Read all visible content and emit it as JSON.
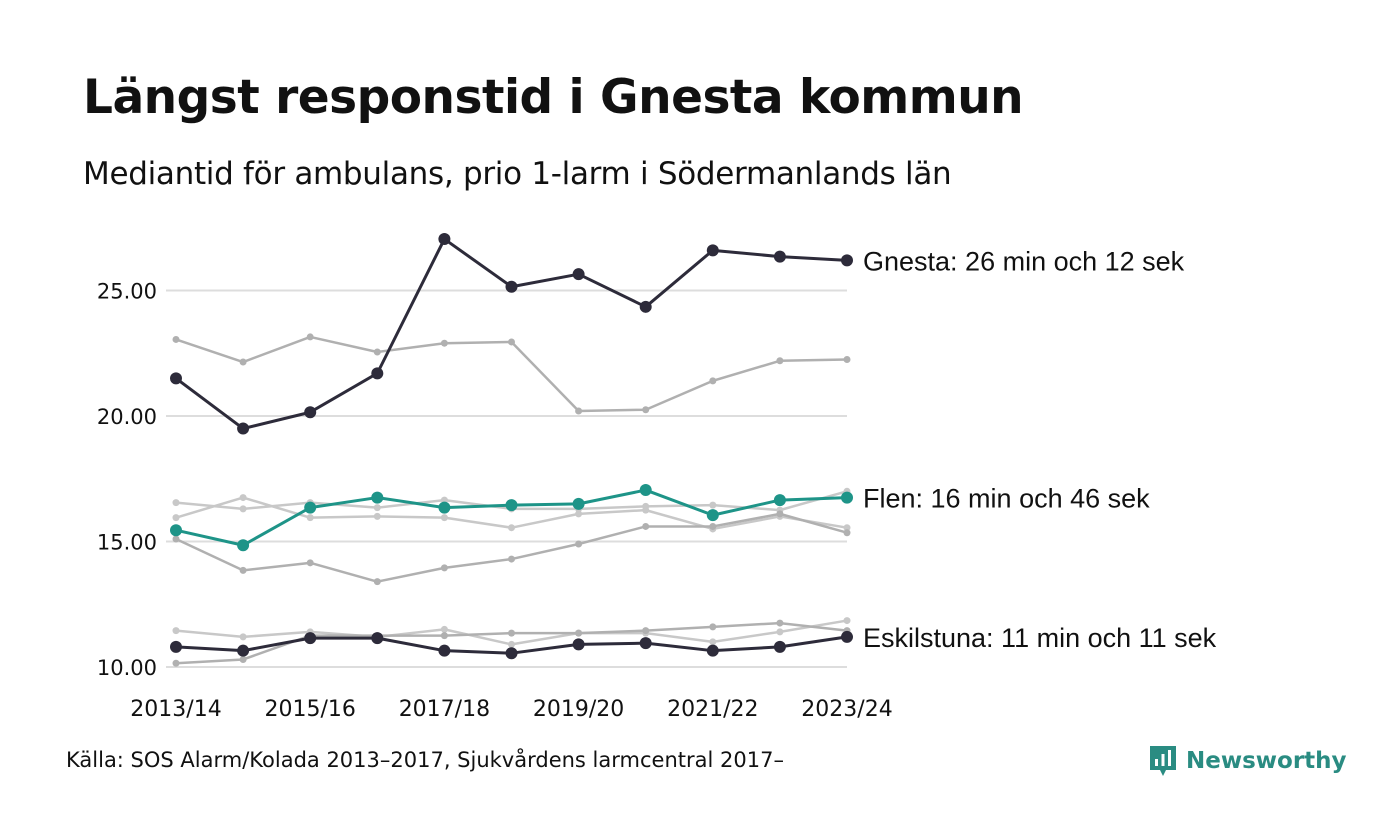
{
  "title": "Längst responstid i Gnesta kommun",
  "subtitle": "Mediantid för ambulans, prio 1-larm i Södermanlands län",
  "source": "Källa: SOS Alarm/Kolada 2013–2017, Sjukvårdens larmcentral 2017–",
  "logo": {
    "name": "Newsworthy",
    "icon": "bar-chart-icon",
    "color": "#2a8c82"
  },
  "colors": {
    "highlight_dark": "#2d2b3a",
    "highlight_teal": "#1e9488",
    "background_line": "#b0b0b0",
    "grid": "#dddddd"
  },
  "chart_data": {
    "type": "line",
    "title": "Längst responstid i Gnesta kommun",
    "subtitle": "Mediantid för ambulans, prio 1-larm i Södermanlands län",
    "xlabel": "",
    "ylabel": "",
    "ylim": [
      9.9,
      27.5
    ],
    "grid": true,
    "legend": "none",
    "x": [
      "2013/14",
      "2014/15",
      "2015/16",
      "2016/17",
      "2017/18",
      "2018/19",
      "2019/20",
      "2020/21",
      "2021/22",
      "2022/23",
      "2023/24"
    ],
    "x_tick_labels": [
      "2013/14",
      "2015/16",
      "2017/18",
      "2019/20",
      "2021/22",
      "2023/24"
    ],
    "y_ticks": [
      10,
      15,
      20,
      25
    ],
    "y_tick_labels": [
      "10.00",
      "15.00",
      "20.00",
      "25.00"
    ],
    "series": [
      {
        "values": [
          23.05,
          22.15,
          23.15,
          22.55,
          22.9,
          22.95,
          20.2,
          20.25,
          21.4,
          22.2,
          22.25
        ],
        "color": "#b0b0b0",
        "highlight": false
      },
      {
        "values": [
          16.55,
          16.3,
          16.55,
          16.35,
          16.65,
          16.3,
          16.3,
          16.4,
          16.45,
          16.25,
          17.0
        ],
        "color": "#c8c8c8",
        "highlight": false
      },
      {
        "values": [
          15.95,
          16.75,
          15.95,
          16.0,
          15.95,
          15.55,
          16.1,
          16.25,
          15.5,
          16.0,
          15.55
        ],
        "color": "#c8c8c8",
        "highlight": false
      },
      {
        "values": [
          15.1,
          13.85,
          14.15,
          13.4,
          13.95,
          14.3,
          14.9,
          15.6,
          15.6,
          16.1,
          15.35
        ],
        "color": "#b0b0b0",
        "highlight": false
      },
      {
        "values": [
          11.45,
          11.2,
          11.4,
          11.2,
          11.5,
          10.9,
          11.35,
          11.35,
          11.0,
          11.4,
          11.85
        ],
        "color": "#c8c8c8",
        "highlight": false
      },
      {
        "values": [
          10.15,
          10.3,
          11.25,
          11.25,
          11.25,
          11.35,
          11.35,
          11.45,
          11.6,
          11.75,
          11.45
        ],
        "color": "#b0b0b0",
        "highlight": false
      },
      {
        "name": "Gnesta",
        "label": "Gnesta: 26 min och 12 sek",
        "values": [
          21.5,
          19.5,
          20.15,
          21.7,
          27.05,
          25.15,
          25.65,
          24.35,
          26.6,
          26.35,
          26.2
        ],
        "color": "#2d2b3a",
        "highlight": true
      },
      {
        "name": "Flen",
        "label": "Flen: 16 min och 46 sek",
        "values": [
          15.45,
          14.85,
          16.35,
          16.75,
          16.35,
          16.45,
          16.5,
          17.05,
          16.05,
          16.65,
          16.75
        ],
        "color": "#1e9488",
        "highlight": true
      },
      {
        "name": "Eskilstuna",
        "label": "Eskilstuna: 11 min och 11 sek",
        "values": [
          10.8,
          10.65,
          11.15,
          11.15,
          10.65,
          10.55,
          10.9,
          10.95,
          10.65,
          10.8,
          11.2
        ],
        "color": "#2d2b3a",
        "highlight": true
      }
    ]
  }
}
